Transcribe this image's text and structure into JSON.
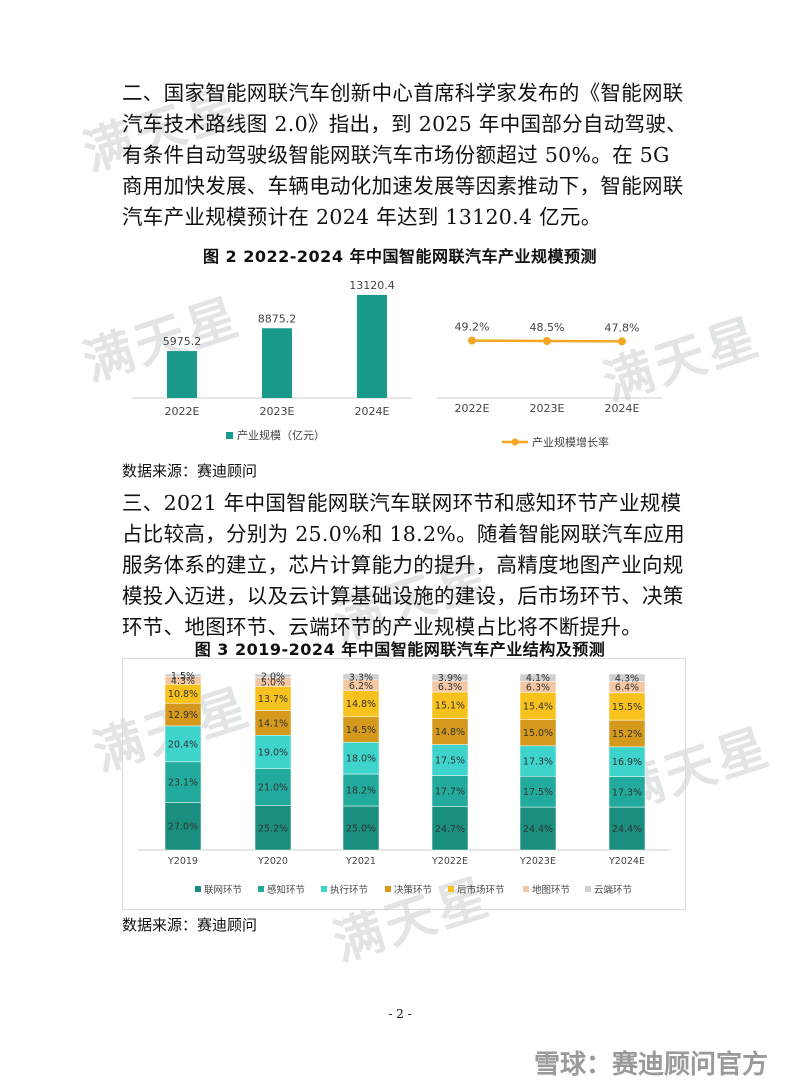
{
  "paragraph1": "二、国家智能网联汽车创新中心首席科学家发布的《智能网联汽车技术路线图 2.0》指出，到 2025 年中国部分自动驾驶、有条件自动驾驶级智能网联汽车市场份额超过 50%。在 5G 商用加快发展、车辆电动化加速发展等因素推动下，智能网联汽车产业规模预计在 2024 年达到 13120.4 亿元。",
  "figure2": {
    "title": "图 2 2022-2024 年中国智能网联汽车产业规模预测",
    "source": "数据来源：赛迪顾问"
  },
  "paragraph2": "三、2021 年中国智能网联汽车联网环节和感知环节产业规模占比较高，分别为 25.0%和 18.2%。随着智能网联汽车应用服务体系的建立，芯片计算能力的提升，高精度地图产业向规模投入迈进，以及云计算基础设施的建设，后市场环节、决策环节、地图环节、云端环节的产业规模占比将不断提升。",
  "figure3": {
    "title": "图 3 2019-2024 年中国智能网联汽车产业结构及预测",
    "source": "数据来源：赛迪顾问"
  },
  "page_number": "- 2 -",
  "watermark_text": "满天星",
  "footer_watermark": "雪球：赛迪顾问官方",
  "chart_data": [
    {
      "type": "bar",
      "categories": [
        "2022E",
        "2023E",
        "2024E"
      ],
      "values": [
        5975.2,
        8875.2,
        13120.4
      ],
      "value_labels": [
        "5975.2",
        "8875.2",
        "13120.4"
      ],
      "legend": "产业规模（亿元）",
      "color": "#1a9a8a"
    },
    {
      "type": "line",
      "categories": [
        "2022E",
        "2023E",
        "2024E"
      ],
      "values": [
        49.2,
        48.5,
        47.8
      ],
      "value_labels": [
        "49.2%",
        "48.5%",
        "47.8%"
      ],
      "legend": "产业规模增长率",
      "color": "#f5a623"
    },
    {
      "type": "bar",
      "stacked": true,
      "categories": [
        "Y2019",
        "Y2020",
        "Y2021",
        "Y2022E",
        "Y2023E",
        "Y2024E"
      ],
      "series": [
        {
          "name": "联网环节",
          "color": "#1a8f7f",
          "values": [
            27.0,
            25.2,
            25.0,
            24.7,
            24.4,
            24.4
          ]
        },
        {
          "name": "感知环节",
          "color": "#22ab9c",
          "values": [
            23.1,
            21.0,
            18.2,
            17.7,
            17.5,
            17.3
          ]
        },
        {
          "name": "执行环节",
          "color": "#3ed4cc",
          "values": [
            20.4,
            19.0,
            18.0,
            17.5,
            17.3,
            16.9
          ]
        },
        {
          "name": "决策环节",
          "color": "#d59a1d",
          "values": [
            12.9,
            14.1,
            14.5,
            14.8,
            15.0,
            15.2
          ]
        },
        {
          "name": "后市场环节",
          "color": "#f8c21e",
          "values": [
            10.8,
            13.7,
            14.8,
            15.1,
            15.4,
            15.5
          ]
        },
        {
          "name": "地图环节",
          "color": "#f5c6a2",
          "values": [
            4.3,
            5.0,
            6.2,
            6.3,
            6.3,
            6.4
          ]
        },
        {
          "name": "云端环节",
          "color": "#cfcfcf",
          "values": [
            1.5,
            2.0,
            3.3,
            3.9,
            4.1,
            4.3
          ]
        }
      ],
      "ylim": [
        0,
        100
      ]
    }
  ]
}
